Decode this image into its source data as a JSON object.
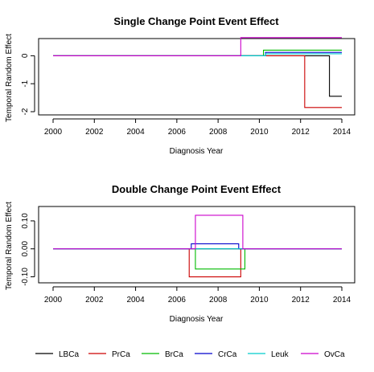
{
  "chart_data": [
    {
      "type": "line",
      "title": "Single Change Point Event Effect",
      "xlabel": "Diagnosis Year",
      "ylabel": "Temporal Random Effect",
      "xlim": [
        2000,
        2014
      ],
      "ylim": [
        -2,
        0.5
      ],
      "xticks": [
        2000,
        2002,
        2004,
        2006,
        2008,
        2010,
        2012,
        2014
      ],
      "yticks": [
        -2,
        -1,
        0
      ],
      "ytick_labels": [
        "-2",
        "-1",
        "0"
      ],
      "grid": false,
      "series": [
        {
          "name": "LBCa",
          "color": "#000000",
          "x": [
            2000,
            2013.4,
            2013.4,
            2014
          ],
          "y": [
            0,
            0,
            -1.45,
            -1.45
          ]
        },
        {
          "name": "PrCa",
          "color": "#CC0000",
          "x": [
            2000,
            2012.2,
            2012.2,
            2014
          ],
          "y": [
            0,
            0,
            -1.85,
            -1.85
          ]
        },
        {
          "name": "BrCa",
          "color": "#00BB00",
          "x": [
            2000,
            2010.2,
            2010.2,
            2014
          ],
          "y": [
            0,
            0,
            0.2,
            0.2
          ]
        },
        {
          "name": "CrCa",
          "color": "#0000CC",
          "x": [
            2000,
            2010.3,
            2010.3,
            2014
          ],
          "y": [
            0,
            0,
            0.12,
            0.12
          ]
        },
        {
          "name": "Leuk",
          "color": "#00CCCC",
          "x": [
            2000,
            2010.3,
            2010.3,
            2014
          ],
          "y": [
            0,
            0,
            0.07,
            0.07
          ]
        },
        {
          "name": "OvCa",
          "color": "#CC00CC",
          "x": [
            2000,
            2009.1,
            2009.1,
            2014
          ],
          "y": [
            0,
            0,
            0.65,
            0.65
          ]
        }
      ]
    },
    {
      "type": "line",
      "title": "Double Change Point Event Effect",
      "xlabel": "Diagnosis Year",
      "ylabel": "Temporal Random Effect",
      "xlim": [
        2000,
        2014
      ],
      "ylim": [
        -0.11,
        0.14
      ],
      "xticks": [
        2000,
        2002,
        2004,
        2006,
        2008,
        2010,
        2012,
        2014
      ],
      "yticks": [
        -0.1,
        0,
        0.1
      ],
      "ytick_labels": [
        "-0.10",
        "0.00",
        "0.10"
      ],
      "grid": false,
      "series": [
        {
          "name": "LBCa",
          "color": "#000000",
          "x": [
            2000,
            2014
          ],
          "y": [
            0,
            0
          ]
        },
        {
          "name": "PrCa",
          "color": "#CC0000",
          "x": [
            2000,
            2006.6,
            2006.6,
            2009.1,
            2009.1,
            2014
          ],
          "y": [
            0,
            0,
            -0.1,
            -0.1,
            0,
            0
          ]
        },
        {
          "name": "BrCa",
          "color": "#00BB00",
          "x": [
            2000,
            2006.9,
            2006.9,
            2009.3,
            2009.3,
            2014
          ],
          "y": [
            0,
            0,
            -0.072,
            -0.072,
            0,
            0
          ]
        },
        {
          "name": "CrCa",
          "color": "#0000CC",
          "x": [
            2000,
            2006.7,
            2006.7,
            2009.0,
            2009.0,
            2014
          ],
          "y": [
            0,
            0,
            0.018,
            0.018,
            0,
            0
          ]
        },
        {
          "name": "Leuk",
          "color": "#00CCCC",
          "x": [
            2000,
            2014
          ],
          "y": [
            0,
            0
          ]
        },
        {
          "name": "OvCa",
          "color": "#CC00CC",
          "x": [
            2000,
            2006.9,
            2006.9,
            2009.2,
            2009.2,
            2014
          ],
          "y": [
            0,
            0,
            0.12,
            0.12,
            0,
            0
          ]
        }
      ]
    }
  ],
  "legend": {
    "placement": "bottom",
    "items": [
      {
        "label": "LBCa",
        "color": "#000000"
      },
      {
        "label": "PrCa",
        "color": "#CC0000"
      },
      {
        "label": "BrCa",
        "color": "#00BB00"
      },
      {
        "label": "CrCa",
        "color": "#0000CC"
      },
      {
        "label": "Leuk",
        "color": "#00CCCC"
      },
      {
        "label": "OvCa",
        "color": "#CC00CC"
      }
    ]
  }
}
